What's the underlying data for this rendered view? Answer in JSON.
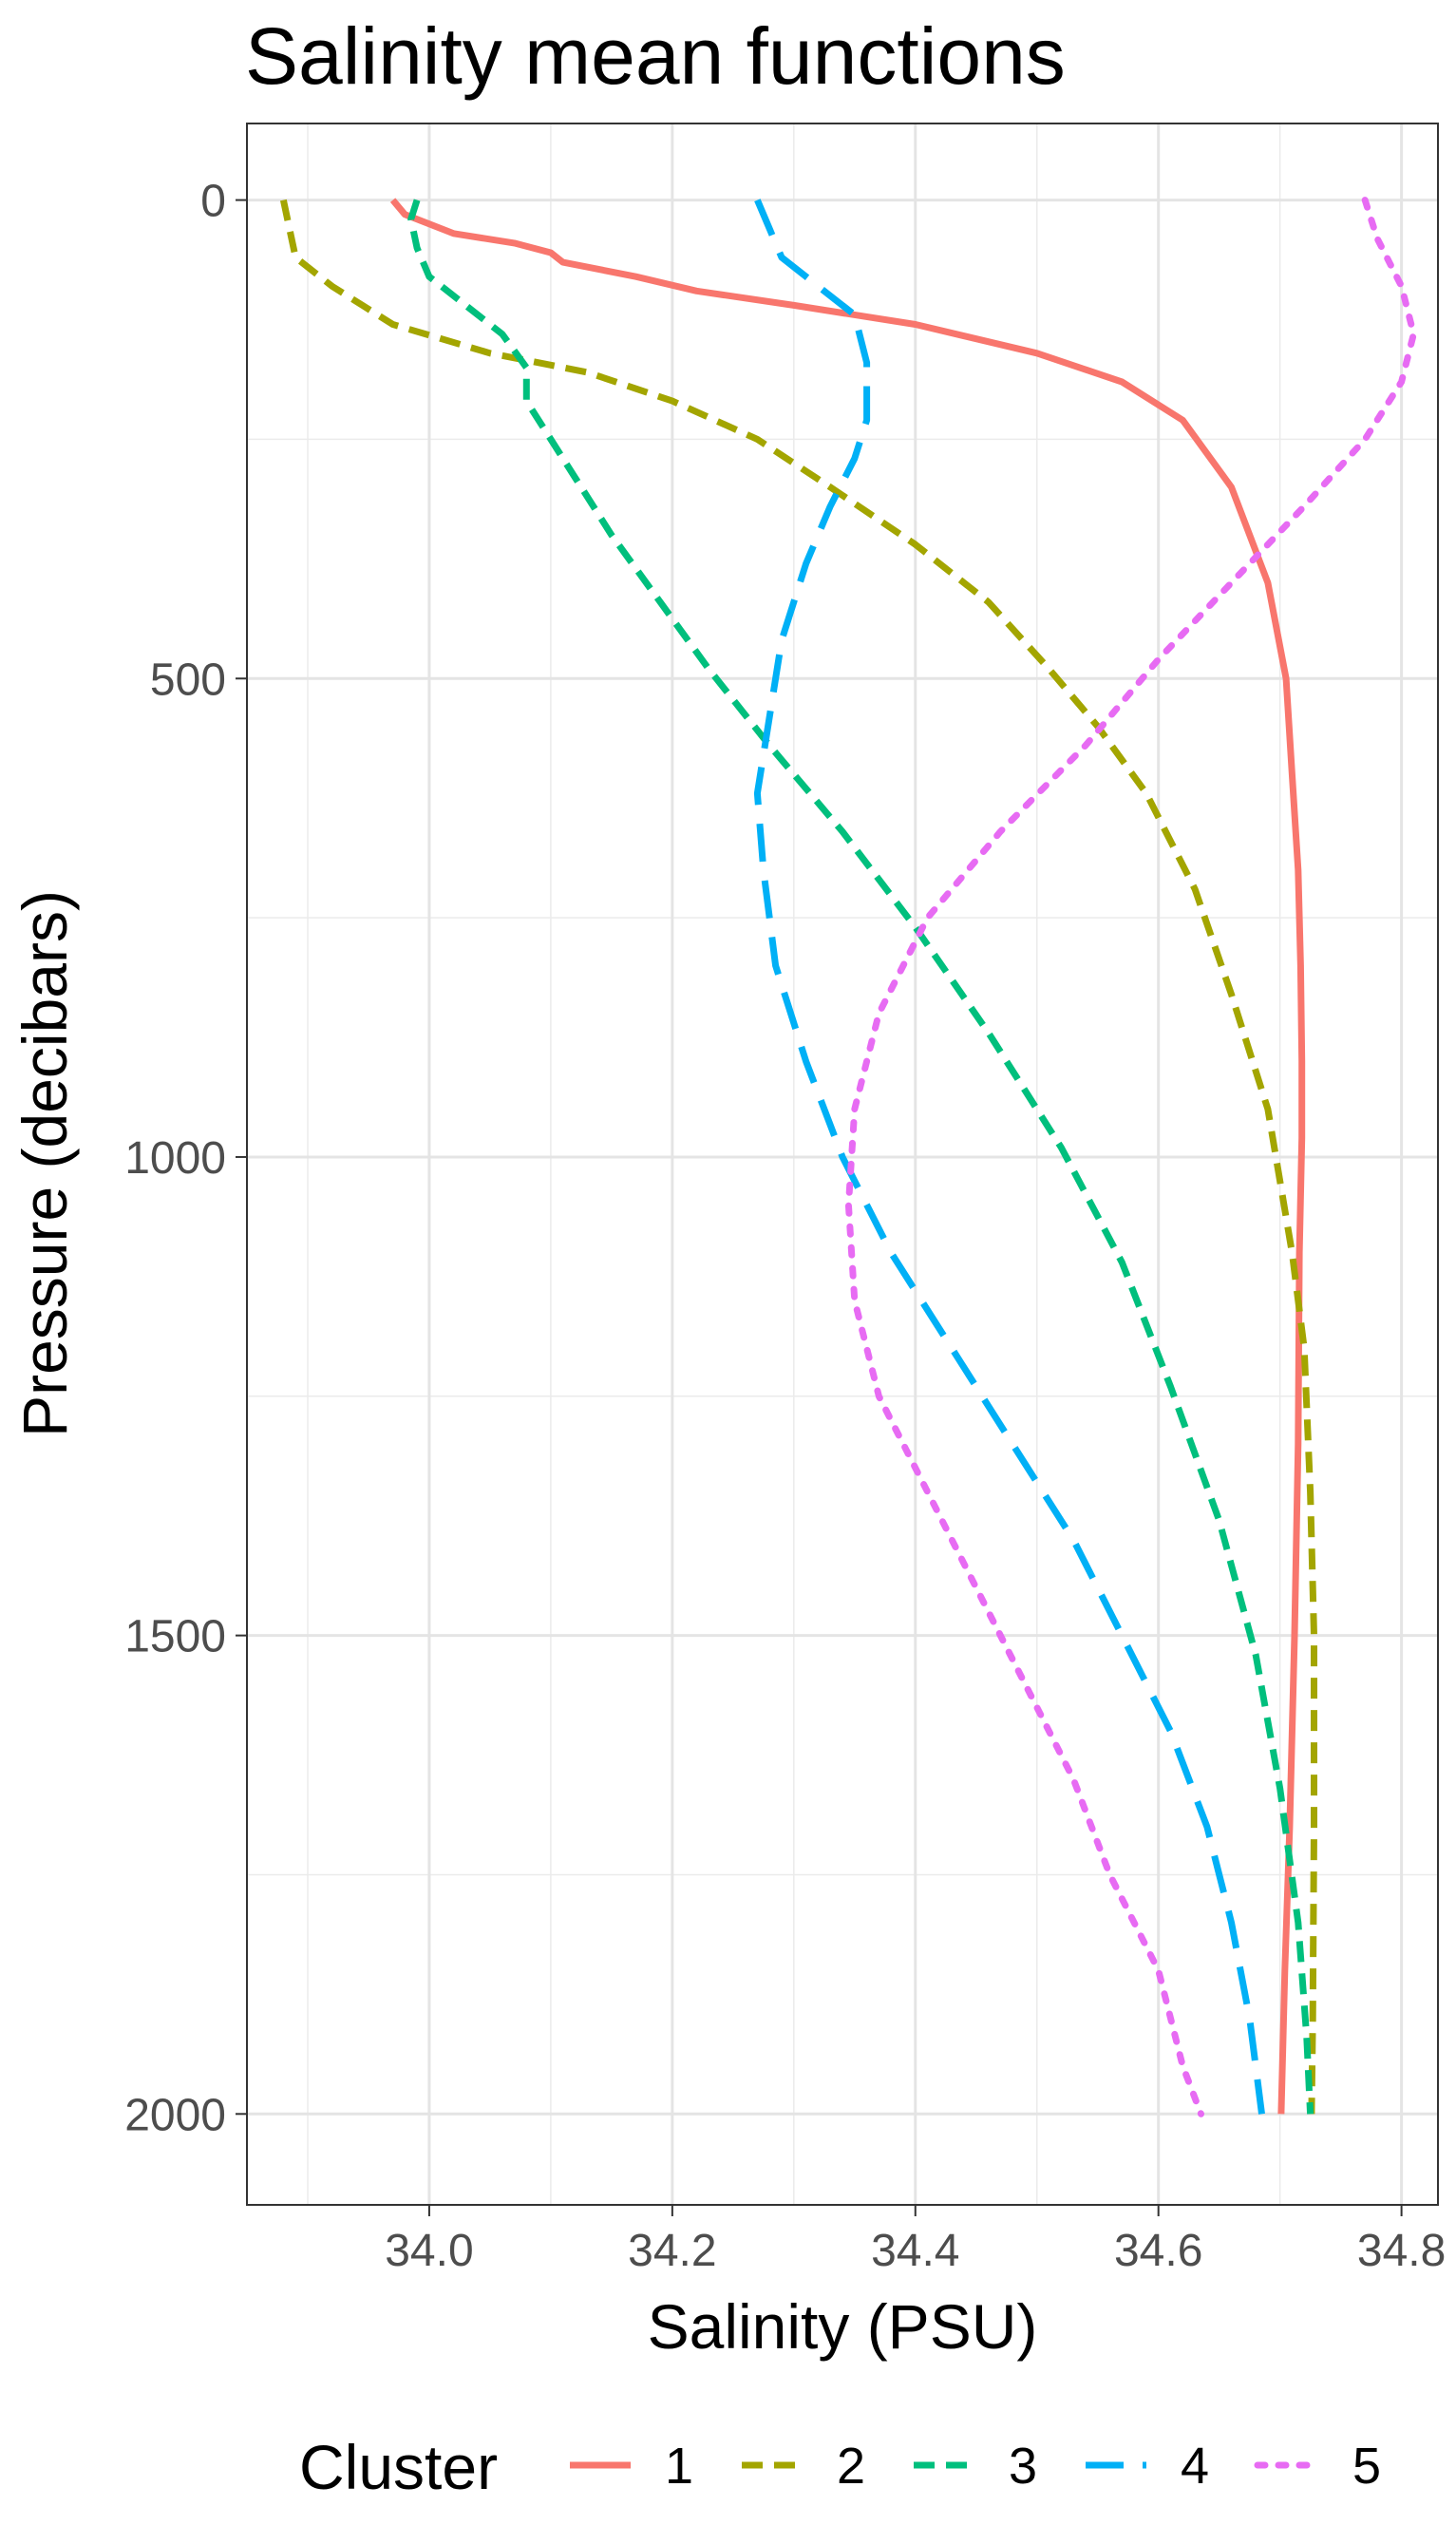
{
  "chart_data": {
    "type": "line",
    "title": "Salinity mean functions",
    "xlabel": "Salinity (PSU)",
    "ylabel": "Pressure (decibars)",
    "xlim": [
      33.85,
      34.83
    ],
    "ylim": [
      2095,
      -80
    ],
    "y_reversed": true,
    "xticks": [
      34.0,
      34.2,
      34.4,
      34.6,
      34.8
    ],
    "xtick_labels": [
      "34.0",
      "34.2",
      "34.4",
      "34.6",
      "34.8"
    ],
    "yticks": [
      0,
      500,
      1000,
      1500,
      2000
    ],
    "ytick_labels": [
      "0",
      "500",
      "1000",
      "1500",
      "2000"
    ],
    "grid": true,
    "legend": {
      "title": "Cluster",
      "position": "bottom"
    },
    "series": [
      {
        "name": "1",
        "color": "#F8766D",
        "dash": "solid",
        "points": [
          [
            33.97,
            0
          ],
          [
            33.98,
            15
          ],
          [
            34.02,
            35
          ],
          [
            34.07,
            45
          ],
          [
            34.1,
            55
          ],
          [
            34.11,
            65
          ],
          [
            34.17,
            80
          ],
          [
            34.22,
            95
          ],
          [
            34.3,
            110
          ],
          [
            34.4,
            130
          ],
          [
            34.5,
            160
          ],
          [
            34.57,
            190
          ],
          [
            34.62,
            230
          ],
          [
            34.66,
            300
          ],
          [
            34.69,
            400
          ],
          [
            34.705,
            500
          ],
          [
            34.71,
            600
          ],
          [
            34.715,
            700
          ],
          [
            34.717,
            800
          ],
          [
            34.718,
            900
          ],
          [
            34.718,
            980
          ],
          [
            34.716,
            1100
          ],
          [
            34.715,
            1300
          ],
          [
            34.712,
            1500
          ],
          [
            34.708,
            1700
          ],
          [
            34.704,
            1850
          ],
          [
            34.701,
            2000
          ]
        ]
      },
      {
        "name": "2",
        "color": "#A3A500",
        "dash": "dashed",
        "points": [
          [
            33.88,
            0
          ],
          [
            33.885,
            30
          ],
          [
            33.89,
            60
          ],
          [
            33.92,
            90
          ],
          [
            33.97,
            130
          ],
          [
            34.05,
            160
          ],
          [
            34.13,
            180
          ],
          [
            34.2,
            210
          ],
          [
            34.27,
            250
          ],
          [
            34.33,
            300
          ],
          [
            34.4,
            360
          ],
          [
            34.46,
            420
          ],
          [
            34.51,
            490
          ],
          [
            34.55,
            550
          ],
          [
            34.59,
            620
          ],
          [
            34.63,
            720
          ],
          [
            34.66,
            830
          ],
          [
            34.69,
            950
          ],
          [
            34.71,
            1100
          ],
          [
            34.72,
            1200
          ],
          [
            34.725,
            1350
          ],
          [
            34.728,
            1500
          ],
          [
            34.728,
            1700
          ],
          [
            34.727,
            1900
          ],
          [
            34.726,
            2000
          ]
        ]
      },
      {
        "name": "3",
        "color": "#00BF7D",
        "dash": "dashed",
        "points": [
          [
            33.99,
            0
          ],
          [
            33.985,
            20
          ],
          [
            33.99,
            50
          ],
          [
            34.0,
            80
          ],
          [
            34.03,
            110
          ],
          [
            34.06,
            140
          ],
          [
            34.08,
            175
          ],
          [
            34.08,
            210
          ],
          [
            34.1,
            250
          ],
          [
            34.12,
            290
          ],
          [
            34.15,
            350
          ],
          [
            34.19,
            420
          ],
          [
            34.23,
            490
          ],
          [
            34.28,
            570
          ],
          [
            34.34,
            660
          ],
          [
            34.4,
            760
          ],
          [
            34.46,
            870
          ],
          [
            34.52,
            990
          ],
          [
            34.57,
            1110
          ],
          [
            34.61,
            1240
          ],
          [
            34.65,
            1380
          ],
          [
            34.68,
            1520
          ],
          [
            34.7,
            1660
          ],
          [
            34.715,
            1800
          ],
          [
            34.722,
            1920
          ],
          [
            34.725,
            2000
          ]
        ]
      },
      {
        "name": "4",
        "color": "#00B0F6",
        "dash": "longdash",
        "points": [
          [
            34.27,
            0
          ],
          [
            34.28,
            30
          ],
          [
            34.29,
            60
          ],
          [
            34.32,
            90
          ],
          [
            34.35,
            120
          ],
          [
            34.36,
            170
          ],
          [
            34.36,
            230
          ],
          [
            34.35,
            270
          ],
          [
            34.33,
            320
          ],
          [
            34.31,
            380
          ],
          [
            34.29,
            460
          ],
          [
            34.28,
            540
          ],
          [
            34.27,
            620
          ],
          [
            34.275,
            700
          ],
          [
            34.285,
            800
          ],
          [
            34.31,
            900
          ],
          [
            34.34,
            1000
          ],
          [
            34.38,
            1100
          ],
          [
            34.43,
            1200
          ],
          [
            34.48,
            1300
          ],
          [
            34.53,
            1400
          ],
          [
            34.57,
            1500
          ],
          [
            34.61,
            1600
          ],
          [
            34.64,
            1700
          ],
          [
            34.66,
            1800
          ],
          [
            34.675,
            1900
          ],
          [
            34.685,
            2000
          ]
        ]
      },
      {
        "name": "5",
        "color": "#E76BF3",
        "dash": "dotted",
        "points": [
          [
            34.77,
            0
          ],
          [
            34.78,
            40
          ],
          [
            34.8,
            90
          ],
          [
            34.81,
            140
          ],
          [
            34.8,
            190
          ],
          [
            34.77,
            250
          ],
          [
            34.72,
            320
          ],
          [
            34.66,
            400
          ],
          [
            34.6,
            480
          ],
          [
            34.54,
            570
          ],
          [
            34.47,
            660
          ],
          [
            34.41,
            750
          ],
          [
            34.37,
            850
          ],
          [
            34.35,
            950
          ],
          [
            34.345,
            1050
          ],
          [
            34.35,
            1150
          ],
          [
            34.37,
            1250
          ],
          [
            34.41,
            1350
          ],
          [
            34.45,
            1450
          ],
          [
            34.49,
            1550
          ],
          [
            34.53,
            1650
          ],
          [
            34.56,
            1750
          ],
          [
            34.6,
            1850
          ],
          [
            34.62,
            1950
          ],
          [
            34.635,
            2000
          ]
        ]
      }
    ]
  }
}
